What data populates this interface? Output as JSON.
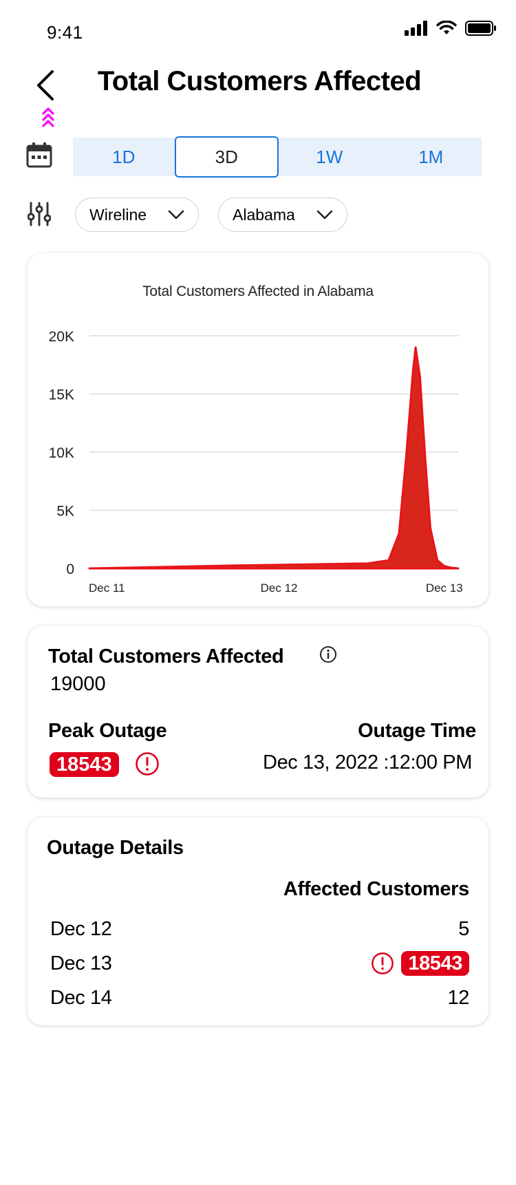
{
  "status_bar": {
    "time": "9:41"
  },
  "header": {
    "title": "Total Customers Affected"
  },
  "time_range": {
    "tabs": [
      "1D",
      "3D",
      "1W",
      "1M"
    ],
    "selected": "3D"
  },
  "filters": {
    "network": "Wireline",
    "state": "Alabama"
  },
  "chart_data": {
    "type": "area",
    "title": "Total Customers Affected in Alabama",
    "xlabel": "",
    "ylabel": "",
    "x_ticks": [
      "Dec 11",
      "Dec 12",
      "Dec 13"
    ],
    "y_ticks": [
      "0",
      "5K",
      "10K",
      "15K",
      "20K"
    ],
    "ylim": [
      0,
      20000
    ],
    "grid": true,
    "color": "#e8141c",
    "series": [
      {
        "x": [
          0,
          0.4,
          0.8,
          1.2,
          1.6,
          1.72,
          1.78,
          1.82,
          1.86,
          1.875,
          1.9,
          1.93,
          1.96,
          2.0,
          2.04,
          2.08,
          2.12
        ],
        "y": [
          0,
          120,
          240,
          330,
          430,
          700,
          3000,
          9500,
          17000,
          19000,
          16500,
          9500,
          3500,
          700,
          200,
          60,
          0
        ]
      }
    ],
    "peak_value": 18543
  },
  "summary": {
    "title": "Total Customers Affected",
    "value": "19000",
    "peak_label": "Peak Outage",
    "peak_value": "18543",
    "outage_time_label": "Outage Time",
    "outage_time_value": "Dec 13, 2022 :12:00 PM"
  },
  "details": {
    "title": "Outage Details",
    "column_header": "Affected Customers",
    "rows": [
      {
        "date": "Dec 12",
        "value": "5"
      },
      {
        "date": "Dec 13",
        "value": "18543",
        "alert": true
      },
      {
        "date": "Dec 14",
        "value": "12"
      }
    ]
  },
  "colors": {
    "accent": "#1a73d9",
    "alert": "#e0001a",
    "priority": "#ff00ff"
  },
  "icons": [
    "back-arrow-icon",
    "priority-chevrons-icon",
    "calendar-icon",
    "filter-sliders-icon",
    "chevron-down-icon",
    "info-icon",
    "alert-icon"
  ]
}
